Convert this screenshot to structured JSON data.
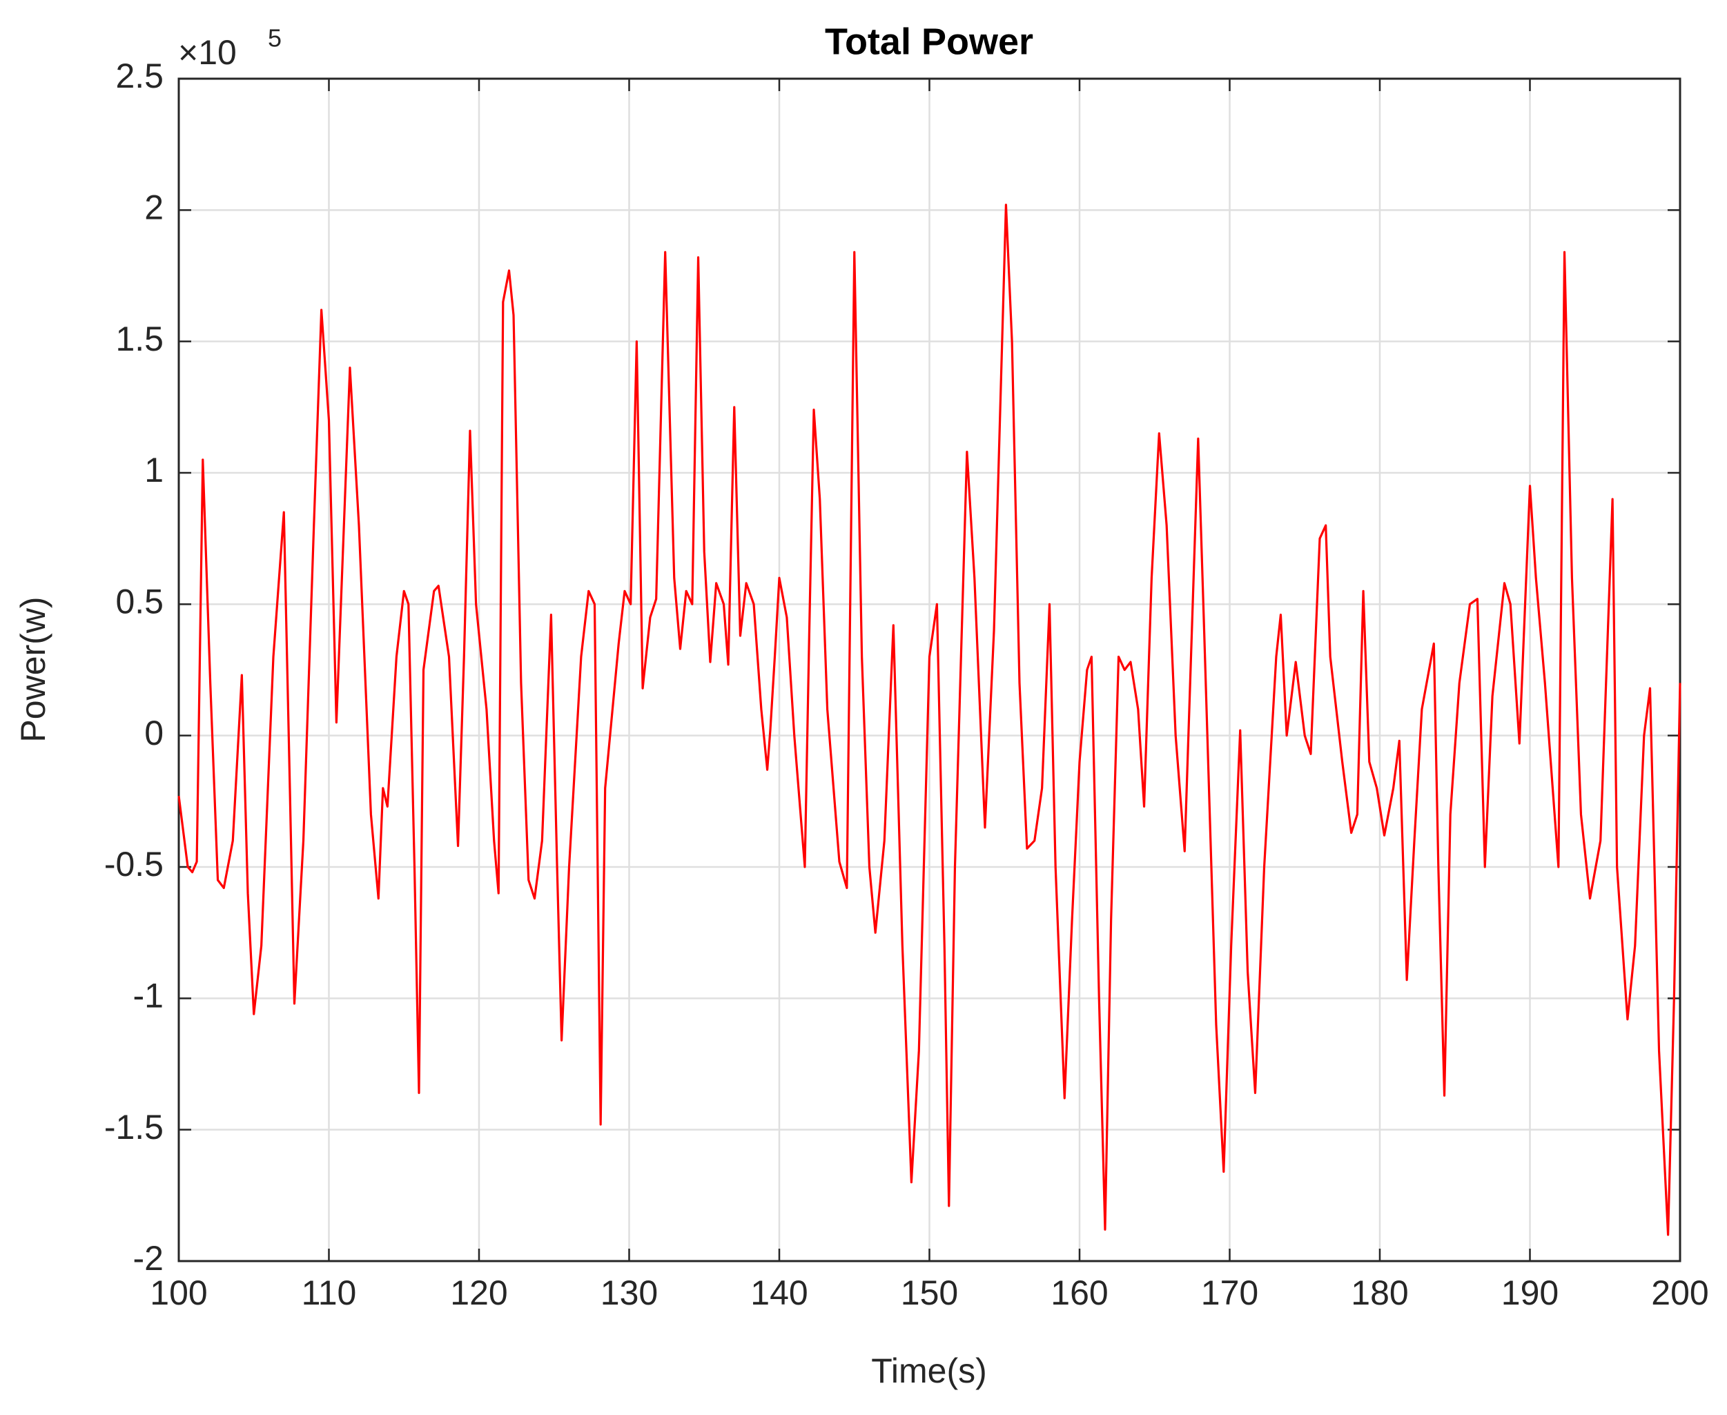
{
  "chart_data": {
    "type": "line",
    "title": "Total Power",
    "x_label": "Time(s)",
    "y_label": "Power(w)",
    "y_scale_factor": {
      "base": "×10",
      "exponent": "5"
    },
    "xlim": [
      100,
      200
    ],
    "xticks": [
      100,
      110,
      120,
      130,
      140,
      150,
      160,
      170,
      180,
      190,
      200
    ],
    "ylim": [
      -2,
      2.5
    ],
    "yticks": [
      -2,
      -1.5,
      -1,
      -0.5,
      0,
      0.5,
      1,
      1.5,
      2,
      2.5
    ],
    "grid": true,
    "x": [
      100,
      100.6,
      100.9,
      101.2,
      101.6,
      102.1,
      102.6,
      103,
      103.6,
      104.2,
      104.6,
      105,
      105.5,
      106.3,
      107,
      107.4,
      107.7,
      108.3,
      109,
      109.5,
      110,
      110.5,
      111,
      111.4,
      112,
      112.8,
      113.3,
      113.6,
      113.9,
      114.5,
      115,
      115.3,
      115.7,
      116,
      116.3,
      117,
      117.3,
      118,
      118.6,
      119,
      119.4,
      119.8,
      120.5,
      121,
      121.3,
      121.6,
      122,
      122.3,
      122.8,
      123.3,
      123.7,
      124.2,
      124.8,
      125.2,
      125.5,
      126,
      126.8,
      127.3,
      127.7,
      128.1,
      128.4,
      129.3,
      129.7,
      130.1,
      130.5,
      130.9,
      131.4,
      131.8,
      132.4,
      133,
      133.4,
      133.8,
      134.2,
      134.6,
      135,
      135.4,
      135.8,
      136.3,
      136.6,
      137,
      137.4,
      137.8,
      138.3,
      138.8,
      139.2,
      139.4,
      139.7,
      140,
      140.5,
      141,
      141.7,
      142,
      142.3,
      142.7,
      143.2,
      144,
      144.5,
      145,
      145.5,
      146,
      146.4,
      147,
      147.6,
      148.2,
      148.8,
      149.3,
      150,
      150.5,
      151,
      151.3,
      151.7,
      152.5,
      153,
      153.7,
      154.3,
      155.1,
      155.5,
      156,
      156.5,
      157,
      157.5,
      158,
      158.4,
      159,
      159.5,
      160,
      160.5,
      160.8,
      161.3,
      161.7,
      162.1,
      162.6,
      163,
      163.4,
      163.9,
      164.3,
      164.8,
      165.3,
      165.8,
      166.4,
      167,
      167.9,
      168.3,
      169.1,
      169.6,
      170.1,
      170.7,
      171.2,
      171.7,
      172.3,
      173.1,
      173.4,
      173.8,
      174.4,
      175,
      175.4,
      176,
      176.4,
      176.7,
      177.5,
      178.1,
      178.5,
      178.9,
      179.3,
      179.8,
      180.3,
      180.9,
      181.3,
      181.8,
      182.3,
      182.8,
      183.6,
      183.9,
      184.3,
      184.7,
      185.3,
      186,
      186.5,
      187,
      187.5,
      188.3,
      188.7,
      189.3,
      190,
      190.4,
      191,
      191.9,
      192.3,
      192.8,
      193.4,
      194,
      194.7,
      195.5,
      195.8,
      196.5,
      197,
      197.6,
      198,
      198.6,
      199.2,
      199.6,
      200
    ],
    "series": [
      {
        "name": "Total Power",
        "color": "#ff0000",
        "values": [
          -0.23,
          -0.5,
          -0.52,
          -0.48,
          1.05,
          0.2,
          -0.55,
          -0.58,
          -0.4,
          0.23,
          -0.6,
          -1.06,
          -0.8,
          0.3,
          0.85,
          -0.2,
          -1.02,
          -0.4,
          0.8,
          1.62,
          1.2,
          0.05,
          0.8,
          1.4,
          0.8,
          -0.3,
          -0.62,
          -0.2,
          -0.27,
          0.3,
          0.55,
          0.5,
          -0.5,
          -1.36,
          0.25,
          0.55,
          0.57,
          0.3,
          -0.42,
          0.3,
          1.16,
          0.5,
          0.1,
          -0.4,
          -0.6,
          1.65,
          1.77,
          1.6,
          0.2,
          -0.55,
          -0.62,
          -0.4,
          0.46,
          -0.5,
          -1.16,
          -0.5,
          0.3,
          0.55,
          0.5,
          -1.48,
          -0.2,
          0.35,
          0.55,
          0.5,
          1.5,
          0.18,
          0.45,
          0.52,
          1.84,
          0.6,
          0.33,
          0.55,
          0.5,
          1.82,
          0.7,
          0.28,
          0.58,
          0.5,
          0.27,
          1.25,
          0.38,
          0.58,
          0.5,
          0.1,
          -0.13,
          0.02,
          0.3,
          0.6,
          0.45,
          0,
          -0.5,
          0.4,
          1.24,
          0.9,
          0.1,
          -0.48,
          -0.58,
          1.84,
          0.3,
          -0.5,
          -0.75,
          -0.4,
          0.42,
          -0.8,
          -1.7,
          -1.2,
          0.3,
          0.5,
          -0.8,
          -1.79,
          -0.5,
          1.08,
          0.6,
          -0.35,
          0.4,
          2.02,
          1.5,
          0.2,
          -0.43,
          -0.4,
          -0.2,
          0.5,
          -0.5,
          -1.38,
          -0.7,
          -0.1,
          0.25,
          0.3,
          -1,
          -1.88,
          -0.7,
          0.3,
          0.25,
          0.28,
          0.1,
          -0.27,
          0.6,
          1.15,
          0.8,
          0,
          -0.44,
          1.13,
          0.4,
          -1.1,
          -1.66,
          -0.8,
          0.02,
          -0.9,
          -1.36,
          -0.5,
          0.3,
          0.46,
          0,
          0.28,
          0,
          -0.07,
          0.75,
          0.8,
          0.3,
          -0.1,
          -0.37,
          -0.3,
          0.55,
          -0.1,
          -0.2,
          -0.38,
          -0.2,
          -0.02,
          -0.93,
          -0.4,
          0.1,
          0.35,
          -0.5,
          -1.37,
          -0.3,
          0.2,
          0.5,
          0.52,
          -0.5,
          0.15,
          0.58,
          0.5,
          -0.03,
          0.95,
          0.6,
          0.2,
          -0.5,
          1.84,
          0.6,
          -0.3,
          -0.62,
          -0.4,
          0.9,
          -0.5,
          -1.08,
          -0.8,
          0,
          0.18,
          -1.2,
          -1.9,
          -1,
          0.2
        ]
      }
    ]
  }
}
